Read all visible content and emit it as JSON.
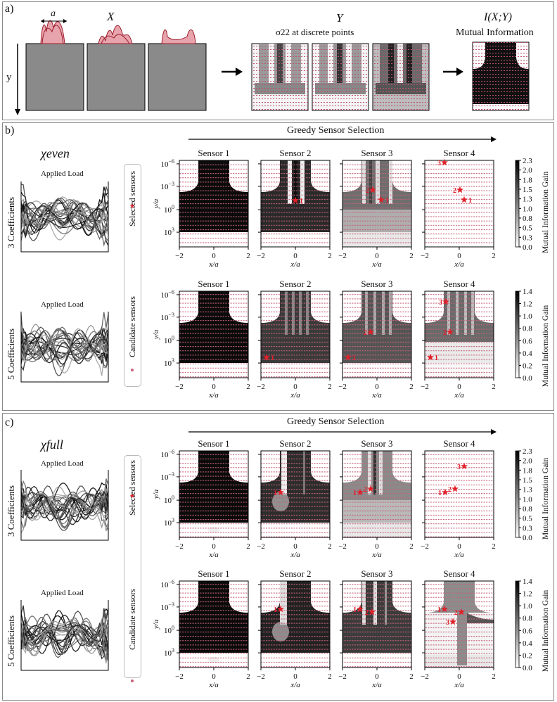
{
  "panel_a": {
    "label": "a)",
    "a_label": "a",
    "x_label": "X",
    "y_label": "Y",
    "y_sub": "σ22 at discrete points",
    "i_label": "I(X;Y)",
    "i_sub": "Mutual Information",
    "y_axis": "y"
  },
  "panel_b": {
    "label": "b)",
    "family": "χeven",
    "arrow_label": "Greedy Sensor Selection",
    "rows": [
      {
        "coeff_label": "3 Coefficients",
        "load_label": "Applied Load"
      },
      {
        "coeff_label": "5 Coefficients",
        "load_label": "Applied Load"
      }
    ],
    "colorbars": [
      {
        "ticks": [
          "2.3",
          "2.0",
          "1.8",
          "1.5",
          "1.3",
          "1.0",
          "0.8",
          "0.5",
          "0.3",
          "0.0"
        ],
        "label": "Mutual Information Gain"
      },
      {
        "ticks": [
          "1.4",
          "1.2",
          "1.0",
          "0.8",
          "0.6",
          "0.4",
          "0.2",
          "0.0"
        ],
        "label": "Mutual Information Gain"
      }
    ]
  },
  "panel_c": {
    "label": "c)",
    "family": "χfull",
    "arrow_label": "Greedy Sensor Selection",
    "rows": [
      {
        "coeff_label": "3 Coefficients",
        "load_label": "Applied Load"
      },
      {
        "coeff_label": "5 Coefficients",
        "load_label": "Applied Load"
      }
    ],
    "colorbars": [
      {
        "ticks": [
          "2.3",
          "2.0",
          "1.8",
          "1.5",
          "1.3",
          "1.0",
          "0.8",
          "0.5",
          "0.3",
          "0.0"
        ],
        "label": "Mutual Information Gain"
      },
      {
        "ticks": [
          "1.4",
          "1.2",
          "1.0",
          "0.8",
          "0.6",
          "0.4",
          "0.2",
          "0.0"
        ],
        "label": "Mutual Information Gain"
      }
    ]
  },
  "legend": {
    "selected": "Selected sensors",
    "candidate": "Candidate sensors"
  },
  "sensor_titles": [
    "Sensor 1",
    "Sensor 2",
    "Sensor 3",
    "Sensor 4"
  ],
  "axes": {
    "xlabel": "x/a",
    "ylabel": "y/a",
    "xticks": [
      "−2",
      "0",
      "2"
    ],
    "yticks": [
      "10−6",
      "10−3",
      "100",
      "103"
    ]
  },
  "colors": {
    "selected": "#e0202a",
    "candidate": "#c8607a",
    "field_dark": "#111111",
    "curve": "#9b1b2b"
  }
}
